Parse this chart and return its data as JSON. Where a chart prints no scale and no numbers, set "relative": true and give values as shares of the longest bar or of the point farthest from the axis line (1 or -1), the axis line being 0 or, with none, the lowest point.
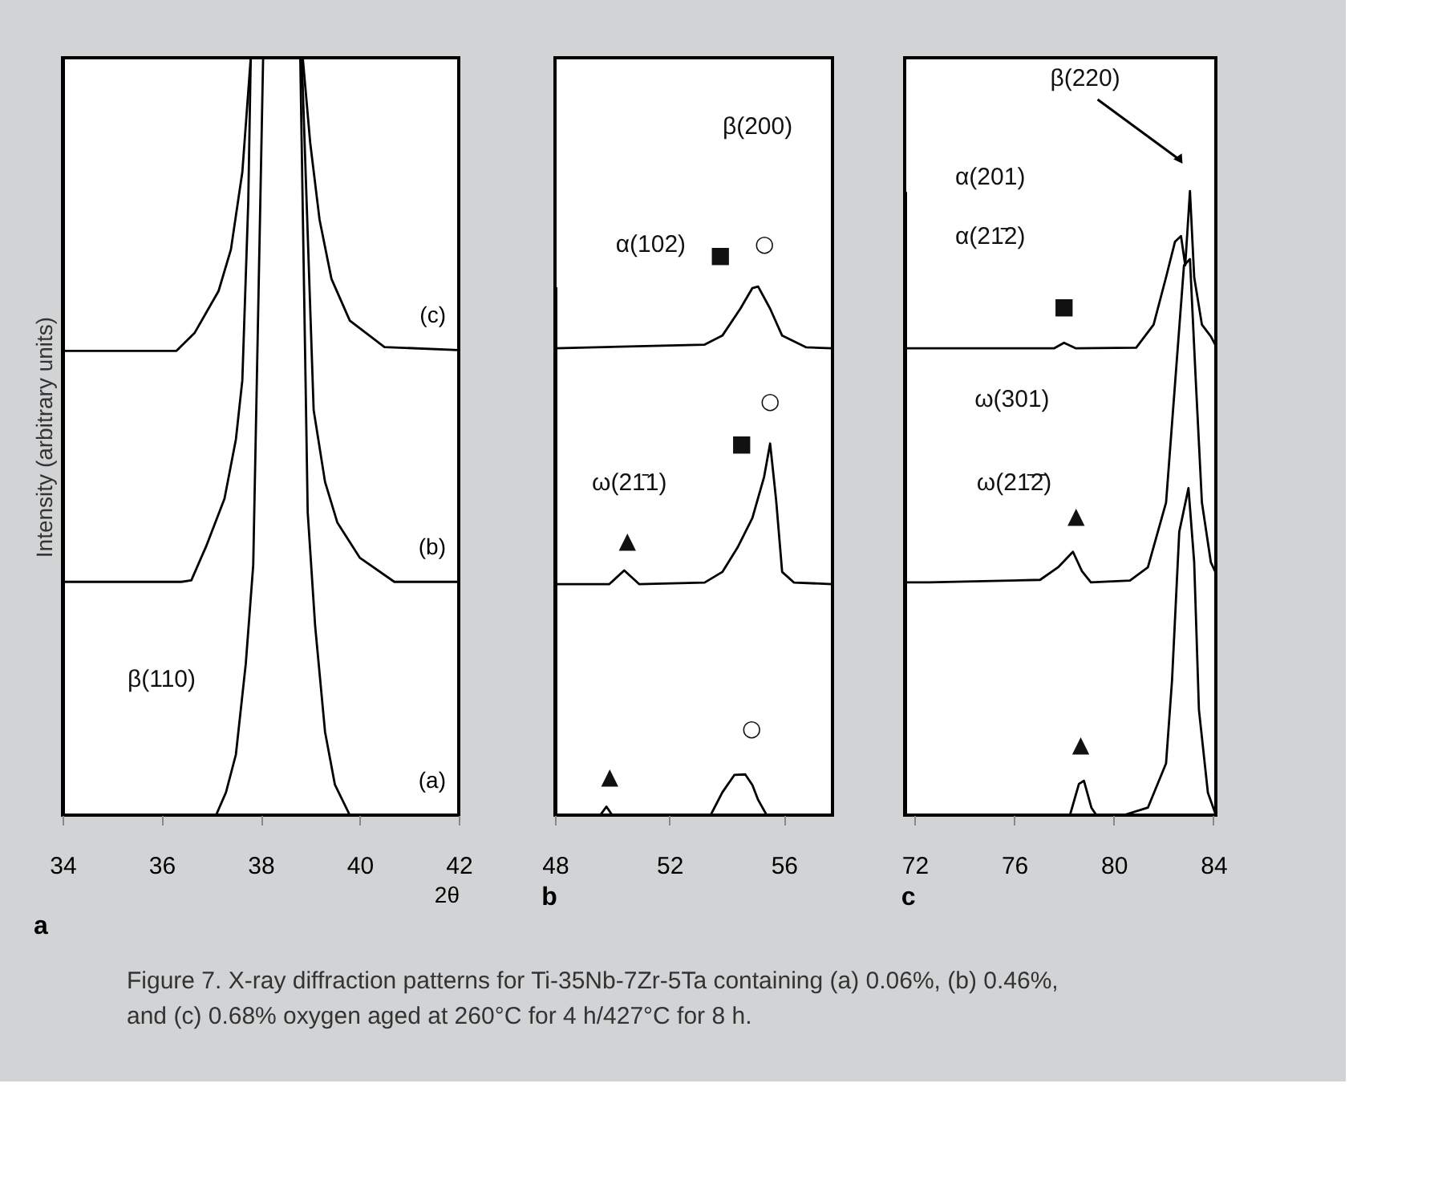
{
  "chart_data": [
    {
      "type": "line",
      "title": "a",
      "xlabel": "2θ",
      "ylabel": "Intensity (arbitrary units)",
      "relative": true,
      "xlim": [
        34,
        42
      ],
      "xticks": [
        34,
        36,
        38,
        40,
        42
      ],
      "grid": false,
      "series": [
        {
          "name": "(a)",
          "color": "#000000",
          "x": [
            34,
            37.1,
            37.3,
            37.5,
            37.7,
            37.85,
            38.05,
            38.8,
            38.95,
            39.1,
            39.3,
            39.5,
            39.8,
            42
          ],
          "values": [
            0,
            0,
            0.03,
            0.08,
            0.2,
            0.33,
            1,
            1,
            0.4,
            0.25,
            0.11,
            0.04,
            0,
            0
          ]
        },
        {
          "name": "(b)",
          "color": "#000000",
          "x": [
            34,
            36.4,
            36.6,
            36.9,
            37.27,
            37.5,
            37.63,
            37.75,
            37.8,
            38.83,
            39.07,
            39.3,
            39.55,
            40.0,
            40.7,
            42
          ],
          "values": [
            0.308,
            0.308,
            0.31,
            0.355,
            0.418,
            0.496,
            0.574,
            0.81,
            1,
            1,
            0.535,
            0.44,
            0.386,
            0.34,
            0.308,
            0.308
          ]
        },
        {
          "name": "(c)",
          "color": "#000000",
          "x": [
            34,
            36.3,
            36.67,
            37.15,
            37.4,
            37.63,
            37.8,
            38.85,
            39.0,
            39.19,
            39.43,
            39.8,
            40.5,
            42
          ],
          "values": [
            0.613,
            0.613,
            0.637,
            0.692,
            0.747,
            0.849,
            1,
            1,
            0.888,
            0.786,
            0.708,
            0.653,
            0.618,
            0.614
          ]
        }
      ],
      "annotations": [
        "β(110)",
        "Figure 7. X-ray diffraction patterns for Ti-35Nb-7Zr-5Ta containing (a) 0.06%, (b) 0.46%, and (c) 0.68% oxygen aged at 260°C for 4 h/427°C for 8 h."
      ]
    },
    {
      "type": "line",
      "title": "b",
      "relative": true,
      "xlim": [
        48,
        57.7
      ],
      "xticks": [
        48,
        52,
        56
      ],
      "grid": false,
      "series": [
        {
          "color": "#000000",
          "x": [
            48,
            49.58,
            49.8,
            50.0,
            53.44,
            53.85,
            54.27,
            54.65,
            54.9,
            55.1,
            55.4,
            57.7
          ],
          "values": [
            0,
            0,
            0.016,
            0,
            0,
            0.043,
            0.076,
            0.077,
            0.057,
            0.029,
            0,
            0
          ]
        },
        {
          "color": "#000000",
          "x": [
            48,
            49.9,
            50.42,
            50.94,
            53.23,
            53.85,
            54.38,
            54.9,
            55.31,
            55.52,
            55.73,
            55.94,
            56.35,
            57.7
          ],
          "values": [
            0.437,
            0.437,
            0.463,
            0.437,
            0.44,
            0.46,
            0.506,
            0.562,
            0.64,
            0.703,
            0.596,
            0.46,
            0.44,
            0.437
          ]
        },
        {
          "color": "#000000",
          "x": [
            48,
            53.23,
            53.85,
            54.48,
            54.9,
            55.1,
            55.52,
            55.94,
            56.77,
            57.7
          ],
          "values": [
            0.883,
            0.89,
            0.907,
            0.958,
            0.997,
            1,
            0.958,
            0.907,
            0.885,
            0.883
          ]
        }
      ],
      "annotations": [
        "β(200)",
        "α(102)",
        "ω(21̄1)",
        {
          "text": "○",
          "x": 55.1,
          "y": 1
        },
        {
          "text": "○",
          "x": 55.52,
          "y": 0.703
        },
        {
          "text": "○",
          "x": 54.65,
          "y": 0.077
        },
        {
          "text": "■",
          "x": 54.9,
          "y": 0.997
        },
        {
          "text": "■",
          "x": 55.31,
          "y": 0.64
        },
        {
          "text": "▲",
          "x": 50.42,
          "y": 0.463
        },
        {
          "text": "▲",
          "x": 49.8,
          "y": 0.016
        }
      ]
    },
    {
      "type": "line",
      "title": "c",
      "relative": true,
      "xlim": [
        71.6,
        84.1
      ],
      "xticks": [
        72,
        76,
        80,
        84
      ],
      "grid": false,
      "series": [
        {
          "color": "#000000",
          "x": [
            71.6,
            78.24,
            78.6,
            78.8,
            79.1,
            79.3,
            80.4,
            81.37,
            82.1,
            82.34,
            82.63,
            83.0,
            83.23,
            83.42,
            83.78,
            84.1
          ],
          "values": [
            0,
            0,
            0.05,
            0.055,
            0.012,
            0,
            0,
            0.012,
            0.083,
            0.216,
            0.454,
            0.524,
            0.405,
            0.169,
            0.036,
            0
          ]
        },
        {
          "color": "#000000",
          "x": [
            71.6,
            72.58,
            77.04,
            77.76,
            78.36,
            78.72,
            79.08,
            80.65,
            81.37,
            82.1,
            82.46,
            82.82,
            83.06,
            83.3,
            83.54,
            83.9,
            84.1
          ],
          "values": [
            0.373,
            0.373,
            0.377,
            0.397,
            0.422,
            0.391,
            0.373,
            0.376,
            0.397,
            0.501,
            0.691,
            0.881,
            0.891,
            0.691,
            0.501,
            0.405,
            0.388
          ]
        },
        {
          "color": "#000000",
          "x": [
            71.6,
            77.6,
            78.0,
            78.48,
            80.9,
            81.6,
            82.1,
            82.46,
            82.7,
            82.87,
            83.06,
            83.23,
            83.54,
            83.9,
            84.1
          ],
          "values": [
            0.748,
            0.748,
            0.757,
            0.748,
            0.749,
            0.786,
            0.862,
            0.919,
            0.928,
            0.881,
            1,
            0.862,
            0.786,
            0.767,
            0.752
          ]
        }
      ],
      "annotations": [
        "β(220)",
        "α(201)",
        "α(21̄2)",
        "ω(301)",
        "ω(21̄2̄)",
        {
          "text": "■",
          "x": 78.0,
          "y": 0.757
        },
        {
          "text": "▲",
          "x": 78.36,
          "y": 0.422
        },
        {
          "text": "▲",
          "x": 78.8,
          "y": 0.055
        }
      ]
    }
  ]
}
